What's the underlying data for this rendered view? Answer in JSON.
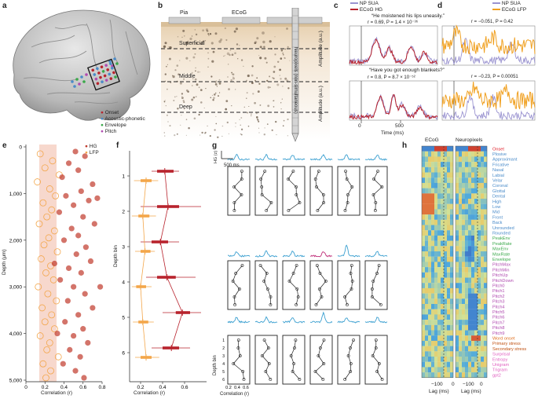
{
  "panel_labels": [
    "a",
    "b",
    "c",
    "d",
    "e",
    "f",
    "g",
    "h"
  ],
  "panel_a": {
    "legend": [
      {
        "label": "Onset",
        "color": "#b8232d"
      },
      {
        "label": "Acoustic-phonetic",
        "color": "#4a8bc9"
      },
      {
        "label": "Envelope",
        "color": "#3aa84a"
      },
      {
        "label": "Pitch",
        "color": "#b04bb0"
      }
    ]
  },
  "panel_b": {
    "pia": "Pia",
    "ecog": "ECoG",
    "superficial": "Superficial",
    "middle": "Middle",
    "deep": "Deep",
    "neuropixels": "Neuropixels",
    "neuropixels_sub": "(non-simultaneous)"
  },
  "panel_c": {
    "legend": [
      {
        "label": "NP SUA",
        "color": "#9a93d0"
      },
      {
        "label": "ECoG HG",
        "color": "#b8232d"
      }
    ],
    "ylabel": "Amplitude (a.u.)",
    "xlabel": "Time (ms)",
    "xticks": [
      "0",
      "500"
    ],
    "stat_top": "r = 0.69, P = 1.4 × 10⁻³⁶",
    "stat_bottom": "r = 0.8, P = 8.7 × 10⁻⁵²"
  },
  "panel_d": {
    "legend": [
      {
        "label": "NP SUA",
        "color": "#9a93d0"
      },
      {
        "label": "ECoG LFP",
        "color": "#f0a020"
      }
    ],
    "stat_top": "r = −0.051, P = 0.42",
    "stat_bottom": "r = −0.23, P = 0.00051"
  },
  "quotes": {
    "top": "“He moistened his lips uneasily.”",
    "bottom": "“Have you got enough blankets?”"
  },
  "chart_data": [
    {
      "type": "scatter",
      "panel": "e",
      "xlabel": "Correlation (r)",
      "ylabel": "Depth (μm)",
      "xlim": [
        0,
        0.8
      ],
      "ylim": [
        5000,
        0
      ],
      "xticks": [
        "0",
        "0.2",
        "0.4",
        "0.6",
        "0.8"
      ],
      "yticks": [
        "0",
        "1,000",
        "2,000",
        "3,000",
        "4,000",
        "5,000"
      ],
      "legend": [
        {
          "label": "HG",
          "color": "#c0392b"
        },
        {
          "label": "LFP",
          "color": "#f3a64a"
        }
      ],
      "series": [
        {
          "name": "HG",
          "points": [
            [
              0.52,
              100
            ],
            [
              0.62,
              200
            ],
            [
              0.45,
              350
            ],
            [
              0.55,
              500
            ],
            [
              0.38,
              650
            ],
            [
              0.7,
              800
            ],
            [
              0.58,
              950
            ],
            [
              0.42,
              1050
            ],
            [
              0.66,
              1150
            ],
            [
              0.5,
              1250
            ],
            [
              0.35,
              1400
            ],
            [
              0.6,
              1500
            ],
            [
              0.72,
              1650
            ],
            [
              0.48,
              1750
            ],
            [
              0.55,
              1900
            ],
            [
              0.4,
              2000
            ],
            [
              0.63,
              2150
            ],
            [
              0.53,
              2300
            ],
            [
              0.68,
              2450
            ],
            [
              0.45,
              2600
            ],
            [
              0.58,
              2700
            ],
            [
              0.36,
              2850
            ],
            [
              0.5,
              3000
            ],
            [
              0.62,
              3150
            ],
            [
              0.44,
              3300
            ],
            [
              0.7,
              3450
            ],
            [
              0.55,
              3600
            ],
            [
              0.41,
              3750
            ],
            [
              0.6,
              3900
            ],
            [
              0.5,
              4050
            ],
            [
              0.65,
              4200
            ],
            [
              0.46,
              4350
            ],
            [
              0.57,
              4500
            ],
            [
              0.39,
              4650
            ],
            [
              0.52,
              4800
            ],
            [
              0.61,
              4950
            ],
            [
              0.75,
              1100
            ],
            [
              0.3,
              2500
            ],
            [
              0.78,
              3000
            ],
            [
              0.33,
              4000
            ]
          ]
        },
        {
          "name": "LFP",
          "points": [
            [
              0.15,
              150
            ],
            [
              0.28,
              300
            ],
            [
              0.2,
              450
            ],
            [
              0.35,
              600
            ],
            [
              0.12,
              750
            ],
            [
              0.25,
              900
            ],
            [
              0.31,
              1050
            ],
            [
              0.18,
              1200
            ],
            [
              0.27,
              1350
            ],
            [
              0.22,
              1500
            ],
            [
              0.14,
              1650
            ],
            [
              0.3,
              1800
            ],
            [
              0.24,
              1950
            ],
            [
              0.19,
              2100
            ],
            [
              0.33,
              2250
            ],
            [
              0.16,
              2400
            ],
            [
              0.26,
              2550
            ],
            [
              0.21,
              2700
            ],
            [
              0.29,
              2850
            ],
            [
              0.13,
              3000
            ],
            [
              0.23,
              3150
            ],
            [
              0.32,
              3300
            ],
            [
              0.17,
              3450
            ],
            [
              0.27,
              3600
            ],
            [
              0.2,
              3750
            ],
            [
              0.3,
              3900
            ],
            [
              0.15,
              4050
            ],
            [
              0.25,
              4200
            ],
            [
              0.22,
              4350
            ],
            [
              0.34,
              4500
            ],
            [
              0.18,
              4650
            ],
            [
              0.26,
              4800
            ],
            [
              0.21,
              4950
            ]
          ]
        }
      ]
    },
    {
      "type": "box",
      "panel": "f",
      "xlabel": "Correlation (r)",
      "ylabel": "Depth bin",
      "xlim": [
        0.1,
        0.8
      ],
      "xticks": [
        "0.2",
        "0.4",
        "0.6"
      ],
      "categories": [
        "1",
        "2",
        "3",
        "4",
        "5",
        "6"
      ],
      "series": [
        {
          "name": "HG",
          "color": "#b8232d",
          "medians": [
            0.42,
            0.45,
            0.38,
            0.44,
            0.58,
            0.48
          ],
          "q1": [
            0.35,
            0.35,
            0.3,
            0.35,
            0.52,
            0.4
          ],
          "q3": [
            0.5,
            0.55,
            0.45,
            0.52,
            0.65,
            0.55
          ],
          "min": [
            0.3,
            0.2,
            0.2,
            0.25,
            0.4,
            0.3
          ],
          "max": [
            0.55,
            0.75,
            0.55,
            0.7,
            0.75,
            0.65
          ]
        },
        {
          "name": "LFP",
          "color": "#f3a64a",
          "medians": [
            0.25,
            0.22,
            0.24,
            0.2,
            0.22,
            0.25
          ],
          "q1": [
            0.2,
            0.18,
            0.2,
            0.16,
            0.18,
            0.2
          ],
          "q3": [
            0.3,
            0.28,
            0.29,
            0.25,
            0.27,
            0.3
          ],
          "min": [
            0.14,
            0.12,
            0.15,
            0.12,
            0.13,
            0.15
          ],
          "max": [
            0.36,
            0.34,
            0.33,
            0.3,
            0.32,
            0.37
          ]
        }
      ]
    }
  ],
  "panel_g": {
    "scale_v": "HG (z)",
    "scale_h": "500 ms",
    "ylabel": "Depth bin",
    "xlabel": "Correlation (r)",
    "xticks": [
      "0.2",
      "0.4",
      "0.6"
    ],
    "yticks": [
      "1",
      "2",
      "3",
      "4",
      "5",
      "6"
    ]
  },
  "panel_h": {
    "header_ecog": "ECoG",
    "header_np": "Neuropixels",
    "xlabel": "Lag (ms)",
    "xtick": "−100",
    "xtick2": "0",
    "features": [
      {
        "label": "Onset",
        "color": "#e0202a"
      },
      {
        "label": "Plosive",
        "color": "#4a8bc9"
      },
      {
        "label": "Approximant",
        "color": "#4a8bc9"
      },
      {
        "label": "Fricative",
        "color": "#4a8bc9"
      },
      {
        "label": "Nasal",
        "color": "#4a8bc9"
      },
      {
        "label": "Labial",
        "color": "#4a8bc9"
      },
      {
        "label": "Velar",
        "color": "#4a8bc9"
      },
      {
        "label": "Coronal",
        "color": "#4a8bc9"
      },
      {
        "label": "Glottal",
        "color": "#4a8bc9"
      },
      {
        "label": "Dental",
        "color": "#4a8bc9"
      },
      {
        "label": "High",
        "color": "#4a8bc9"
      },
      {
        "label": "Low",
        "color": "#4a8bc9"
      },
      {
        "label": "Mid",
        "color": "#4a8bc9"
      },
      {
        "label": "Front",
        "color": "#4a8bc9"
      },
      {
        "label": "Back",
        "color": "#4a8bc9"
      },
      {
        "label": "Unrounded",
        "color": "#4a8bc9"
      },
      {
        "label": "Rounded",
        "color": "#4a8bc9"
      },
      {
        "label": "PeakEnv",
        "color": "#3aa84a"
      },
      {
        "label": "PeakRate",
        "color": "#3aa84a"
      },
      {
        "label": "MaxEnv",
        "color": "#3aa84a"
      },
      {
        "label": "MaxRate",
        "color": "#3aa84a"
      },
      {
        "label": "Envelope",
        "color": "#3aa84a"
      },
      {
        "label": "PitchMax",
        "color": "#b04bb0"
      },
      {
        "label": "PitchMin",
        "color": "#b04bb0"
      },
      {
        "label": "PitchUp",
        "color": "#b04bb0"
      },
      {
        "label": "PitchDown",
        "color": "#b04bb0"
      },
      {
        "label": "Pitch0",
        "color": "#b04bb0"
      },
      {
        "label": "Pitch1",
        "color": "#b04bb0"
      },
      {
        "label": "Pitch2",
        "color": "#b04bb0"
      },
      {
        "label": "Pitch3",
        "color": "#b04bb0"
      },
      {
        "label": "Pitch4",
        "color": "#b04bb0"
      },
      {
        "label": "Pitch5",
        "color": "#b04bb0"
      },
      {
        "label": "Pitch6",
        "color": "#b04bb0"
      },
      {
        "label": "Pitch7",
        "color": "#b04bb0"
      },
      {
        "label": "Pitch8",
        "color": "#b04bb0"
      },
      {
        "label": "Pitch9",
        "color": "#b04bb0"
      },
      {
        "label": "Word onset",
        "color": "#e07020"
      },
      {
        "label": "Primary stress",
        "color": "#c05010"
      },
      {
        "label": "Secondary stress",
        "color": "#c05010"
      },
      {
        "label": "Surprisal",
        "color": "#e060c0"
      },
      {
        "label": "Entropy",
        "color": "#e060c0"
      },
      {
        "label": "Unigram",
        "color": "#e060c0"
      },
      {
        "label": "Trigram",
        "color": "#e060c0"
      },
      {
        "label": "gpt2",
        "color": "#e060c0"
      }
    ]
  }
}
